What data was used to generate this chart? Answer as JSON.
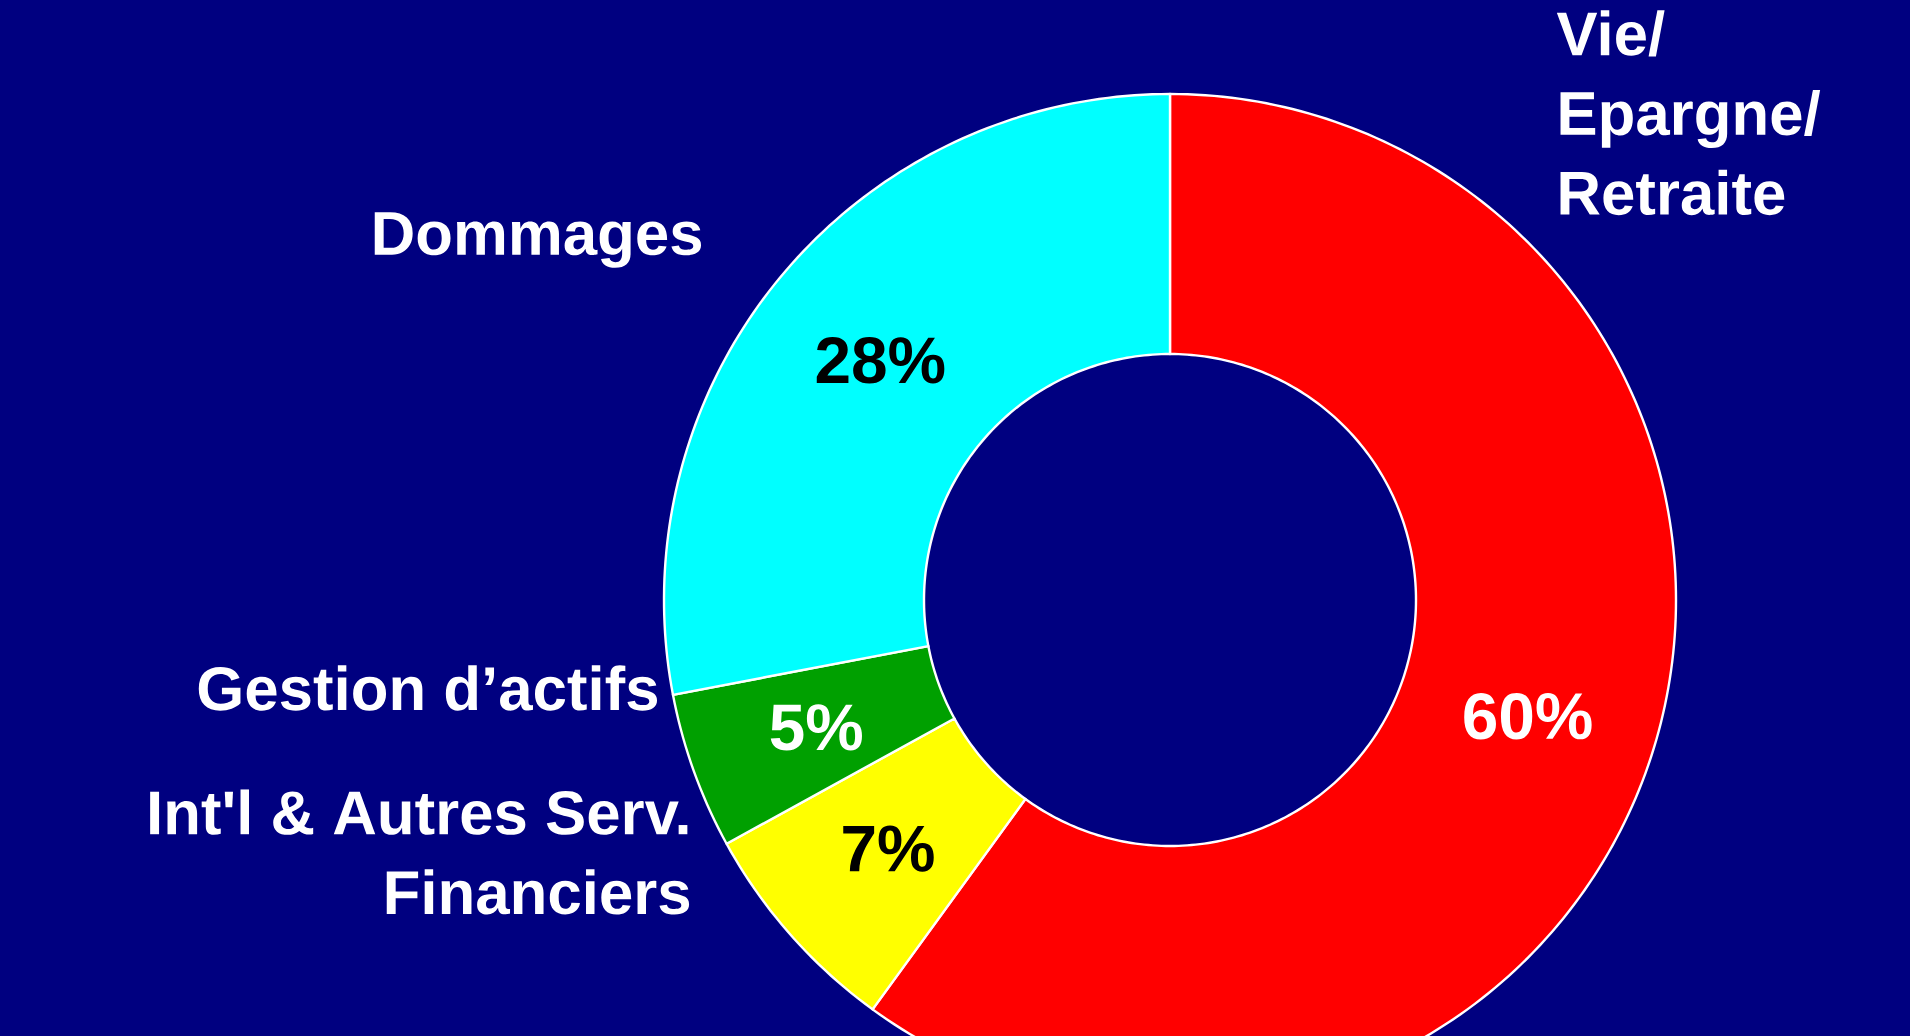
{
  "chart_data": {
    "type": "donut",
    "categories": [
      "Vie/ Epargne/ Retraite",
      "Int'l & Autres Serv. Financiers",
      "Gestion d’actifs",
      "Dommages"
    ],
    "values": [
      60,
      7,
      5,
      28
    ],
    "colors": [
      "#ff0000",
      "#ffff00",
      "#00a000",
      "#00ffff"
    ],
    "value_labels": [
      "60%",
      "7%",
      "5%",
      "28%"
    ]
  }
}
